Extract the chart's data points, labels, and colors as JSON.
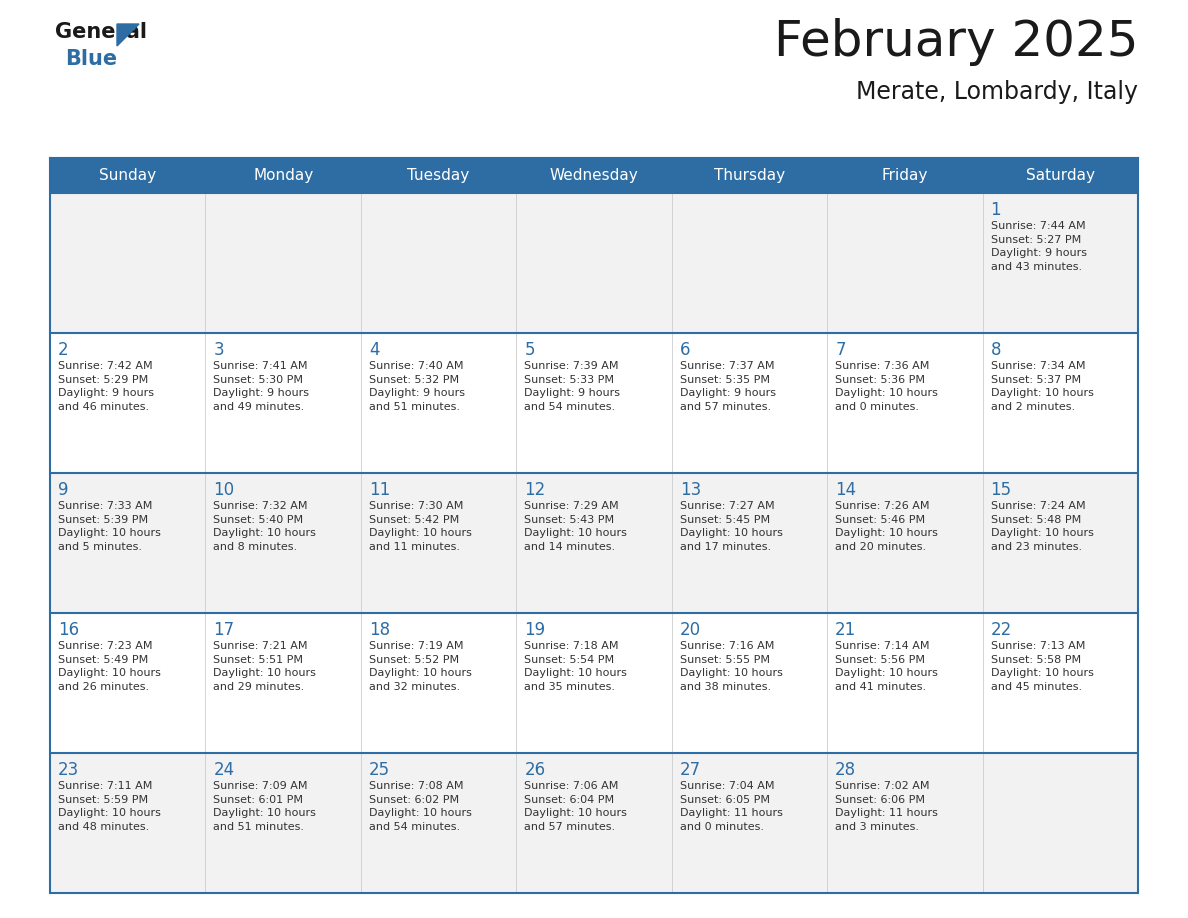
{
  "title": "February 2025",
  "subtitle": "Merate, Lombardy, Italy",
  "days_of_week": [
    "Sunday",
    "Monday",
    "Tuesday",
    "Wednesday",
    "Thursday",
    "Friday",
    "Saturday"
  ],
  "header_bg": "#2e6da4",
  "header_text": "#ffffff",
  "row_bg_odd": "#f2f2f2",
  "row_bg_even": "#ffffff",
  "day_num_color": "#2e6da4",
  "info_color": "#333333",
  "border_color": "#2e6da4",
  "title_color": "#1a1a1a",
  "subtitle_color": "#1a1a1a",
  "logo_general_color": "#1a1a1a",
  "logo_blue_color": "#2e6da4",
  "weeks": [
    [
      {
        "day": null,
        "info": ""
      },
      {
        "day": null,
        "info": ""
      },
      {
        "day": null,
        "info": ""
      },
      {
        "day": null,
        "info": ""
      },
      {
        "day": null,
        "info": ""
      },
      {
        "day": null,
        "info": ""
      },
      {
        "day": 1,
        "info": "Sunrise: 7:44 AM\nSunset: 5:27 PM\nDaylight: 9 hours\nand 43 minutes."
      }
    ],
    [
      {
        "day": 2,
        "info": "Sunrise: 7:42 AM\nSunset: 5:29 PM\nDaylight: 9 hours\nand 46 minutes."
      },
      {
        "day": 3,
        "info": "Sunrise: 7:41 AM\nSunset: 5:30 PM\nDaylight: 9 hours\nand 49 minutes."
      },
      {
        "day": 4,
        "info": "Sunrise: 7:40 AM\nSunset: 5:32 PM\nDaylight: 9 hours\nand 51 minutes."
      },
      {
        "day": 5,
        "info": "Sunrise: 7:39 AM\nSunset: 5:33 PM\nDaylight: 9 hours\nand 54 minutes."
      },
      {
        "day": 6,
        "info": "Sunrise: 7:37 AM\nSunset: 5:35 PM\nDaylight: 9 hours\nand 57 minutes."
      },
      {
        "day": 7,
        "info": "Sunrise: 7:36 AM\nSunset: 5:36 PM\nDaylight: 10 hours\nand 0 minutes."
      },
      {
        "day": 8,
        "info": "Sunrise: 7:34 AM\nSunset: 5:37 PM\nDaylight: 10 hours\nand 2 minutes."
      }
    ],
    [
      {
        "day": 9,
        "info": "Sunrise: 7:33 AM\nSunset: 5:39 PM\nDaylight: 10 hours\nand 5 minutes."
      },
      {
        "day": 10,
        "info": "Sunrise: 7:32 AM\nSunset: 5:40 PM\nDaylight: 10 hours\nand 8 minutes."
      },
      {
        "day": 11,
        "info": "Sunrise: 7:30 AM\nSunset: 5:42 PM\nDaylight: 10 hours\nand 11 minutes."
      },
      {
        "day": 12,
        "info": "Sunrise: 7:29 AM\nSunset: 5:43 PM\nDaylight: 10 hours\nand 14 minutes."
      },
      {
        "day": 13,
        "info": "Sunrise: 7:27 AM\nSunset: 5:45 PM\nDaylight: 10 hours\nand 17 minutes."
      },
      {
        "day": 14,
        "info": "Sunrise: 7:26 AM\nSunset: 5:46 PM\nDaylight: 10 hours\nand 20 minutes."
      },
      {
        "day": 15,
        "info": "Sunrise: 7:24 AM\nSunset: 5:48 PM\nDaylight: 10 hours\nand 23 minutes."
      }
    ],
    [
      {
        "day": 16,
        "info": "Sunrise: 7:23 AM\nSunset: 5:49 PM\nDaylight: 10 hours\nand 26 minutes."
      },
      {
        "day": 17,
        "info": "Sunrise: 7:21 AM\nSunset: 5:51 PM\nDaylight: 10 hours\nand 29 minutes."
      },
      {
        "day": 18,
        "info": "Sunrise: 7:19 AM\nSunset: 5:52 PM\nDaylight: 10 hours\nand 32 minutes."
      },
      {
        "day": 19,
        "info": "Sunrise: 7:18 AM\nSunset: 5:54 PM\nDaylight: 10 hours\nand 35 minutes."
      },
      {
        "day": 20,
        "info": "Sunrise: 7:16 AM\nSunset: 5:55 PM\nDaylight: 10 hours\nand 38 minutes."
      },
      {
        "day": 21,
        "info": "Sunrise: 7:14 AM\nSunset: 5:56 PM\nDaylight: 10 hours\nand 41 minutes."
      },
      {
        "day": 22,
        "info": "Sunrise: 7:13 AM\nSunset: 5:58 PM\nDaylight: 10 hours\nand 45 minutes."
      }
    ],
    [
      {
        "day": 23,
        "info": "Sunrise: 7:11 AM\nSunset: 5:59 PM\nDaylight: 10 hours\nand 48 minutes."
      },
      {
        "day": 24,
        "info": "Sunrise: 7:09 AM\nSunset: 6:01 PM\nDaylight: 10 hours\nand 51 minutes."
      },
      {
        "day": 25,
        "info": "Sunrise: 7:08 AM\nSunset: 6:02 PM\nDaylight: 10 hours\nand 54 minutes."
      },
      {
        "day": 26,
        "info": "Sunrise: 7:06 AM\nSunset: 6:04 PM\nDaylight: 10 hours\nand 57 minutes."
      },
      {
        "day": 27,
        "info": "Sunrise: 7:04 AM\nSunset: 6:05 PM\nDaylight: 11 hours\nand 0 minutes."
      },
      {
        "day": 28,
        "info": "Sunrise: 7:02 AM\nSunset: 6:06 PM\nDaylight: 11 hours\nand 3 minutes."
      },
      {
        "day": null,
        "info": ""
      }
    ]
  ]
}
